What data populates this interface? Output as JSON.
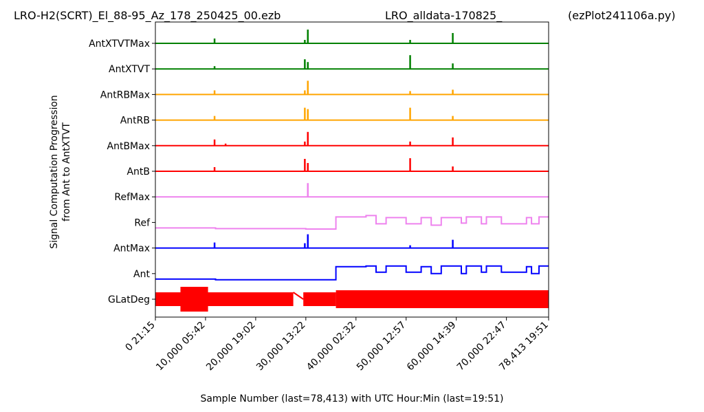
{
  "chart_data": {
    "type": "line",
    "title_left": "LRO-H2(SCRT)_El_88-95_Az_178_250425_00.ezb",
    "title_center": "LRO_alldata-170825_",
    "title_right": "(ezPlot241106a.py)",
    "xlabel": "Sample Number (last=78,413) with UTC Hour:Min (last=19:51)",
    "ylabel_line1": "Signal Computation Progression",
    "ylabel_line2": "from Ant to AntXTVT",
    "xlim": [
      0,
      78413
    ],
    "x_ticks": [
      {
        "value": 0,
        "label": "0  21:15"
      },
      {
        "value": 10000,
        "label": "10,000  05:42"
      },
      {
        "value": 20000,
        "label": "20,000  19:02"
      },
      {
        "value": 30000,
        "label": "30,000  13:22"
      },
      {
        "value": 40000,
        "label": "40,000  02:32"
      },
      {
        "value": 50000,
        "label": "50,000  12:57"
      },
      {
        "value": 60000,
        "label": "60,000  14:39"
      },
      {
        "value": 70000,
        "label": "70,000  22:47"
      },
      {
        "value": 78413,
        "label": "78,413  19:51"
      }
    ],
    "series": [
      {
        "name": "AntXTVTMax",
        "color": "#008000",
        "style": "spikes",
        "spikes": [
          [
            11800,
            0.35
          ],
          [
            29800,
            0.25
          ],
          [
            30400,
            1.0
          ],
          [
            50800,
            0.25
          ],
          [
            59300,
            0.75
          ]
        ]
      },
      {
        "name": "AntXTVT",
        "color": "#008000",
        "style": "spikes",
        "spikes": [
          [
            11800,
            0.2
          ],
          [
            29800,
            0.7
          ],
          [
            30400,
            0.5
          ],
          [
            50800,
            1.0
          ],
          [
            59300,
            0.4
          ]
        ]
      },
      {
        "name": "AntRBMax",
        "color": "#FFA500",
        "style": "spikes",
        "spikes": [
          [
            11800,
            0.3
          ],
          [
            29800,
            0.3
          ],
          [
            30400,
            1.0
          ],
          [
            50800,
            0.25
          ],
          [
            59300,
            0.35
          ]
        ]
      },
      {
        "name": "AntRB",
        "color": "#FFA500",
        "style": "spikes",
        "spikes": [
          [
            11800,
            0.3
          ],
          [
            29800,
            0.9
          ],
          [
            30400,
            0.8
          ],
          [
            50800,
            0.9
          ],
          [
            59300,
            0.3
          ]
        ]
      },
      {
        "name": "AntBMax",
        "color": "#FF0000",
        "style": "spikes",
        "spikes": [
          [
            11800,
            0.45
          ],
          [
            14000,
            0.15
          ],
          [
            29800,
            0.3
          ],
          [
            30400,
            1.0
          ],
          [
            50800,
            0.3
          ],
          [
            59300,
            0.6
          ]
        ]
      },
      {
        "name": "AntB",
        "color": "#FF0000",
        "style": "spikes",
        "spikes": [
          [
            11800,
            0.3
          ],
          [
            29800,
            0.9
          ],
          [
            30400,
            0.6
          ],
          [
            50800,
            0.95
          ],
          [
            59300,
            0.35
          ]
        ]
      },
      {
        "name": "RefMax",
        "color": "#EE82EE",
        "style": "spikes",
        "spikes": [
          [
            30400,
            1.0
          ]
        ]
      },
      {
        "name": "Ref",
        "color": "#EE82EE",
        "style": "steps",
        "steps": [
          [
            0,
            0.0
          ],
          [
            12000,
            -0.05
          ],
          [
            30000,
            -0.08
          ],
          [
            36000,
            -0.08
          ],
          [
            36000,
            0.8
          ],
          [
            42000,
            0.9
          ],
          [
            44000,
            0.3
          ],
          [
            46000,
            0.75
          ],
          [
            50000,
            0.3
          ],
          [
            53000,
            0.75
          ],
          [
            55000,
            0.2
          ],
          [
            57000,
            0.75
          ],
          [
            61000,
            0.35
          ],
          [
            62000,
            0.8
          ],
          [
            65000,
            0.3
          ],
          [
            66000,
            0.8
          ],
          [
            69000,
            0.3
          ],
          [
            74000,
            0.75
          ],
          [
            75000,
            0.3
          ],
          [
            76500,
            0.8
          ],
          [
            78413,
            0.8
          ]
        ]
      },
      {
        "name": "AntMax",
        "color": "#0000FF",
        "style": "spikes",
        "spikes": [
          [
            11800,
            0.4
          ],
          [
            29800,
            0.35
          ],
          [
            30400,
            1.0
          ],
          [
            50800,
            0.2
          ],
          [
            59300,
            0.6
          ]
        ]
      },
      {
        "name": "Ant",
        "color": "#0000FF",
        "style": "steps",
        "steps": [
          [
            0,
            0.0
          ],
          [
            12000,
            -0.05
          ],
          [
            30000,
            -0.05
          ],
          [
            36000,
            -0.05
          ],
          [
            36000,
            0.9
          ],
          [
            42000,
            0.95
          ],
          [
            44000,
            0.5
          ],
          [
            46000,
            0.95
          ],
          [
            50000,
            0.5
          ],
          [
            53000,
            0.9
          ],
          [
            55000,
            0.4
          ],
          [
            57000,
            0.95
          ],
          [
            61000,
            0.4
          ],
          [
            62000,
            0.95
          ],
          [
            65000,
            0.5
          ],
          [
            66000,
            0.95
          ],
          [
            69000,
            0.5
          ],
          [
            74000,
            0.9
          ],
          [
            75000,
            0.4
          ],
          [
            76500,
            0.95
          ],
          [
            78413,
            0.95
          ]
        ]
      },
      {
        "name": "GLatDeg",
        "color": "#FF0000",
        "style": "band",
        "segments": [
          [
            0,
            27500
          ],
          [
            29500,
            36000
          ],
          [
            36000,
            78413
          ]
        ]
      }
    ],
    "grid": false
  }
}
